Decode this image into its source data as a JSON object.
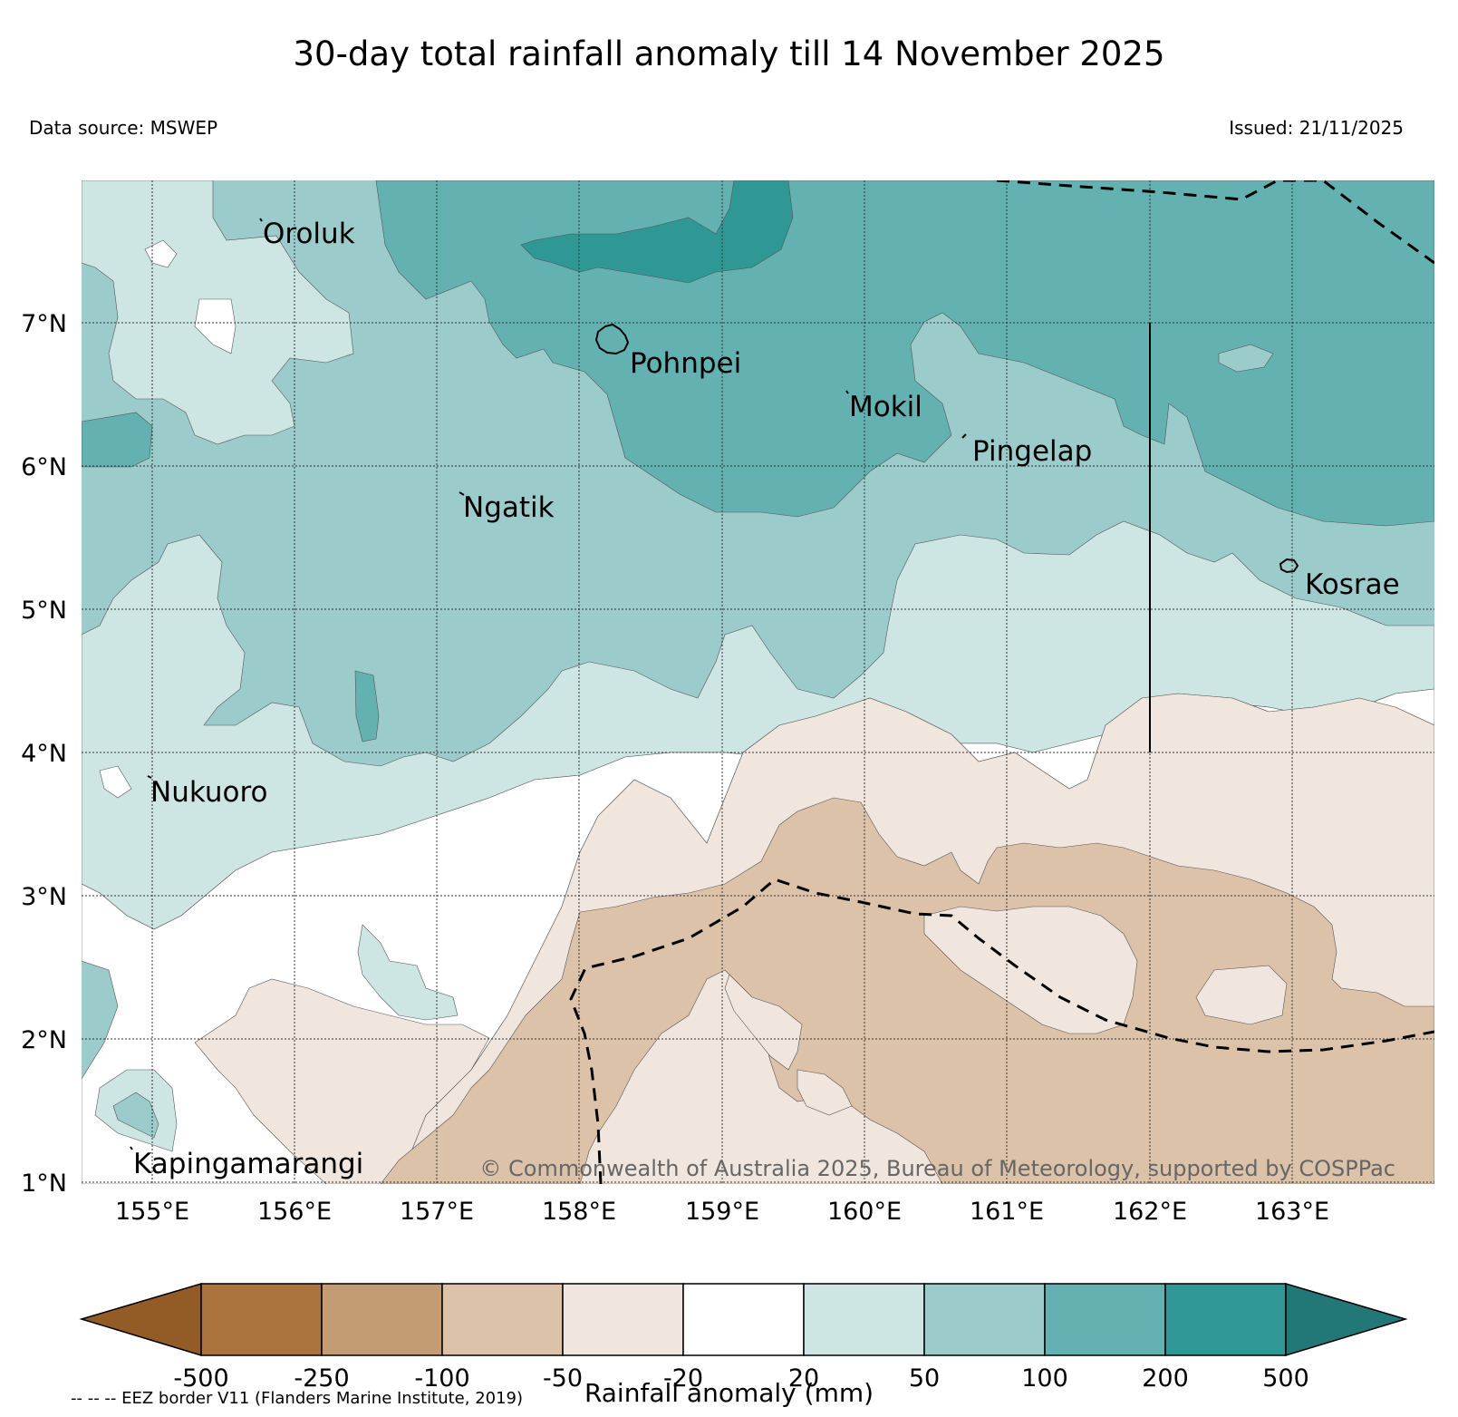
{
  "title": "30-day total rainfall anomaly till 14 November 2025",
  "data_source": "Data source: MSWEP",
  "issued": "Issued: 21/11/2025",
  "copyright": "© Commonwealth of Australia 2025, Bureau of Meteorology, supported by COSPPac",
  "eez_note": "-- -- -- EEZ border V11 (Flanders Marine Institute, 2019)",
  "map": {
    "lon_range": [
      154.5,
      164.0
    ],
    "lat_range": [
      1.0,
      8.0
    ],
    "lon_ticks": [
      "155°E",
      "156°E",
      "157°E",
      "158°E",
      "159°E",
      "160°E",
      "161°E",
      "162°E",
      "163°E"
    ],
    "lat_ticks": [
      "7°N",
      "6°N",
      "5°N",
      "4°N",
      "3°N",
      "2°N",
      "1°N"
    ],
    "places": [
      {
        "name": "Oroluk",
        "lon": 155.75,
        "lat": 7.65
      },
      {
        "name": "Pohnpei",
        "lon": 158.25,
        "lat": 6.75
      },
      {
        "name": "Mokil",
        "lon": 159.75,
        "lat": 6.45
      },
      {
        "name": "Pingelap",
        "lon": 160.7,
        "lat": 6.15
      },
      {
        "name": "Ngatik",
        "lon": 157.15,
        "lat": 5.75
      },
      {
        "name": "Kosrae",
        "lon": 163.0,
        "lat": 5.25
      },
      {
        "name": "Nukuoro",
        "lon": 154.95,
        "lat": 3.75
      },
      {
        "name": "Kapingamarangi",
        "lon": 154.85,
        "lat": 1.05
      }
    ]
  },
  "colorbar": {
    "title": "Rainfall anomaly (mm)",
    "labels": [
      "-500",
      "-250",
      "-100",
      "-50",
      "-20",
      "20",
      "50",
      "100",
      "200",
      "500"
    ],
    "colors": [
      "#935b26",
      "#ab743e",
      "#c49b72",
      "#dbc2a9",
      "#f1e6dd",
      "#ffffff",
      "#cde6e4",
      "#9ccbcb",
      "#63b1b1",
      "#2f9794",
      "#247777"
    ]
  }
}
